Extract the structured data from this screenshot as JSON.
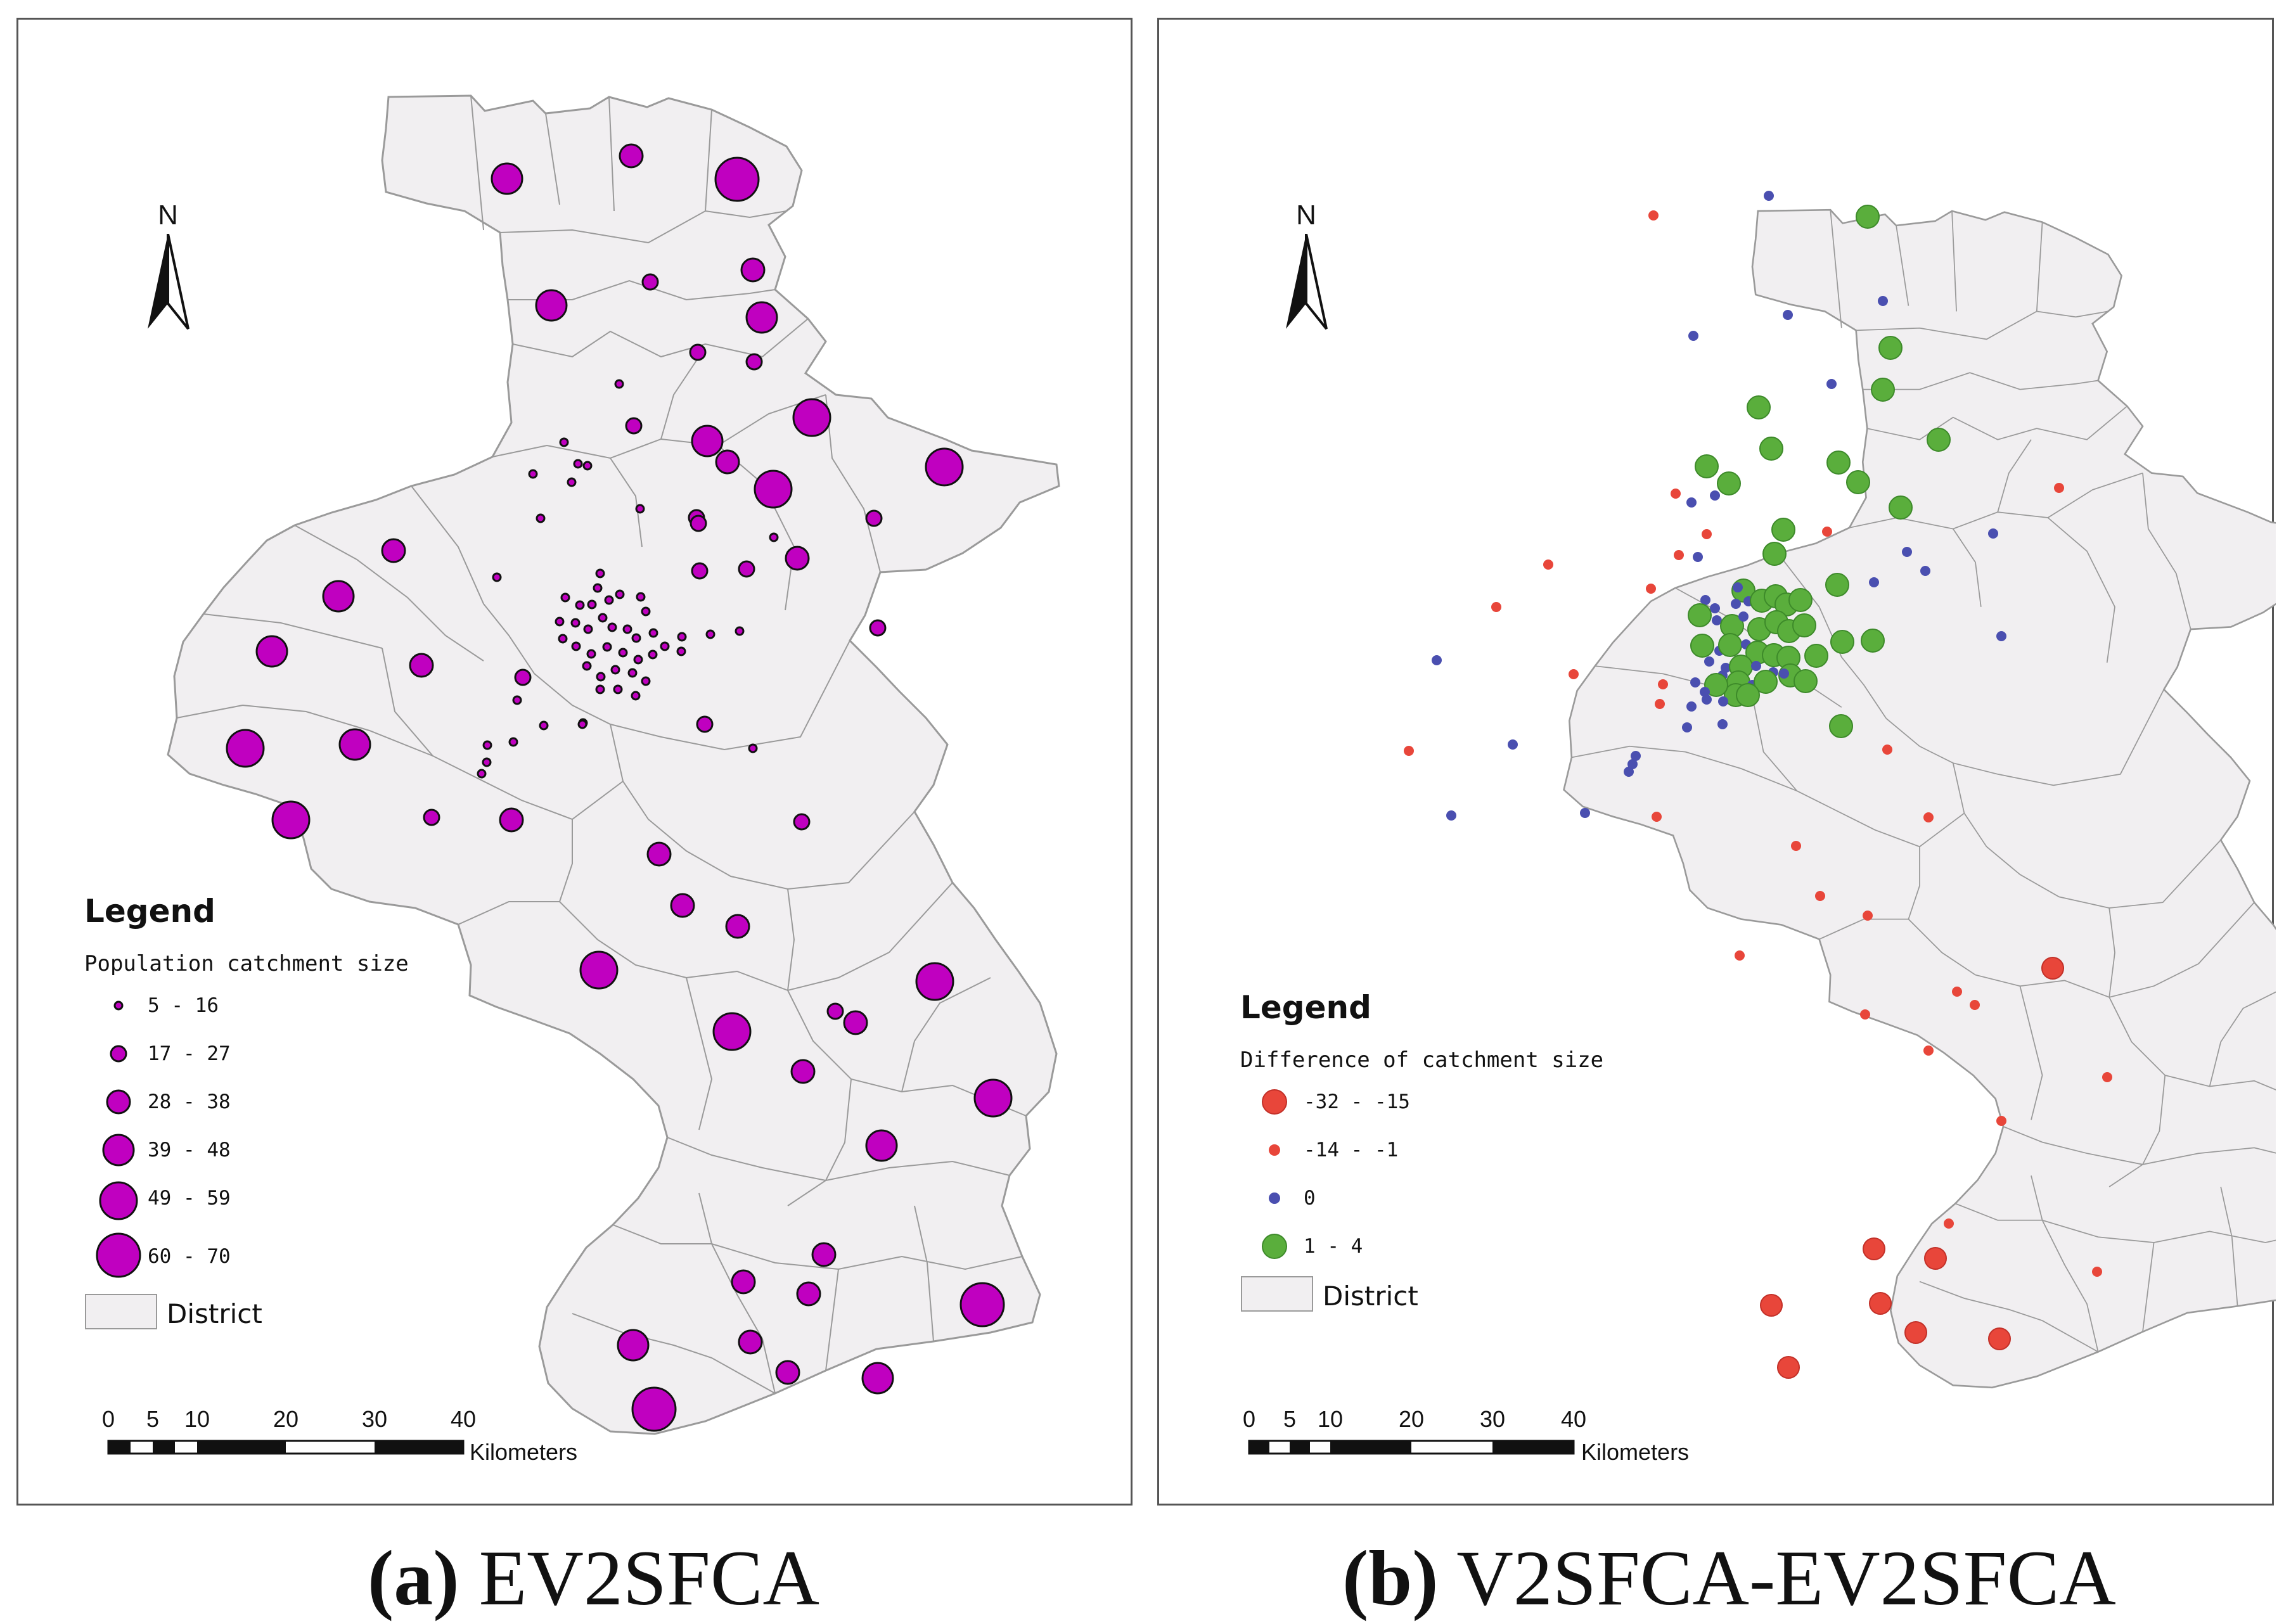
{
  "panel_a": {
    "caption_label": "(a)",
    "caption_method": "EV2SFCA",
    "north_label": "N",
    "legend": {
      "title": "Legend",
      "subtitle": "Population catchment size",
      "classes": [
        "5 - 16",
        "17 - 27",
        "28 - 38",
        "39 - 48",
        "49 - 59",
        "60 - 70"
      ],
      "district_label": "District"
    },
    "scalebar": {
      "ticks": [
        "0",
        "5",
        "10",
        "20",
        "30",
        "40"
      ],
      "unit": "Kilometers"
    }
  },
  "panel_b": {
    "caption_label": "(b)",
    "caption_method": "V2SFCA-EV2SFCA",
    "north_label": "N",
    "legend": {
      "title": "Legend",
      "subtitle": "Difference of catchment size",
      "classes": [
        "-32 - -15",
        "-14 - -1",
        "0",
        "1 - 4"
      ],
      "district_label": "District"
    },
    "scalebar": {
      "ticks": [
        "0",
        "5",
        "10",
        "20",
        "30",
        "40"
      ],
      "unit": "Kilometers"
    }
  },
  "colors": {
    "magenta": "#c000c0",
    "red": "#e8463a",
    "blue": "#4a4fb0",
    "green": "#5aae3c",
    "district_fill": "#f1eff1",
    "district_stroke": "#9a9a9a"
  }
}
